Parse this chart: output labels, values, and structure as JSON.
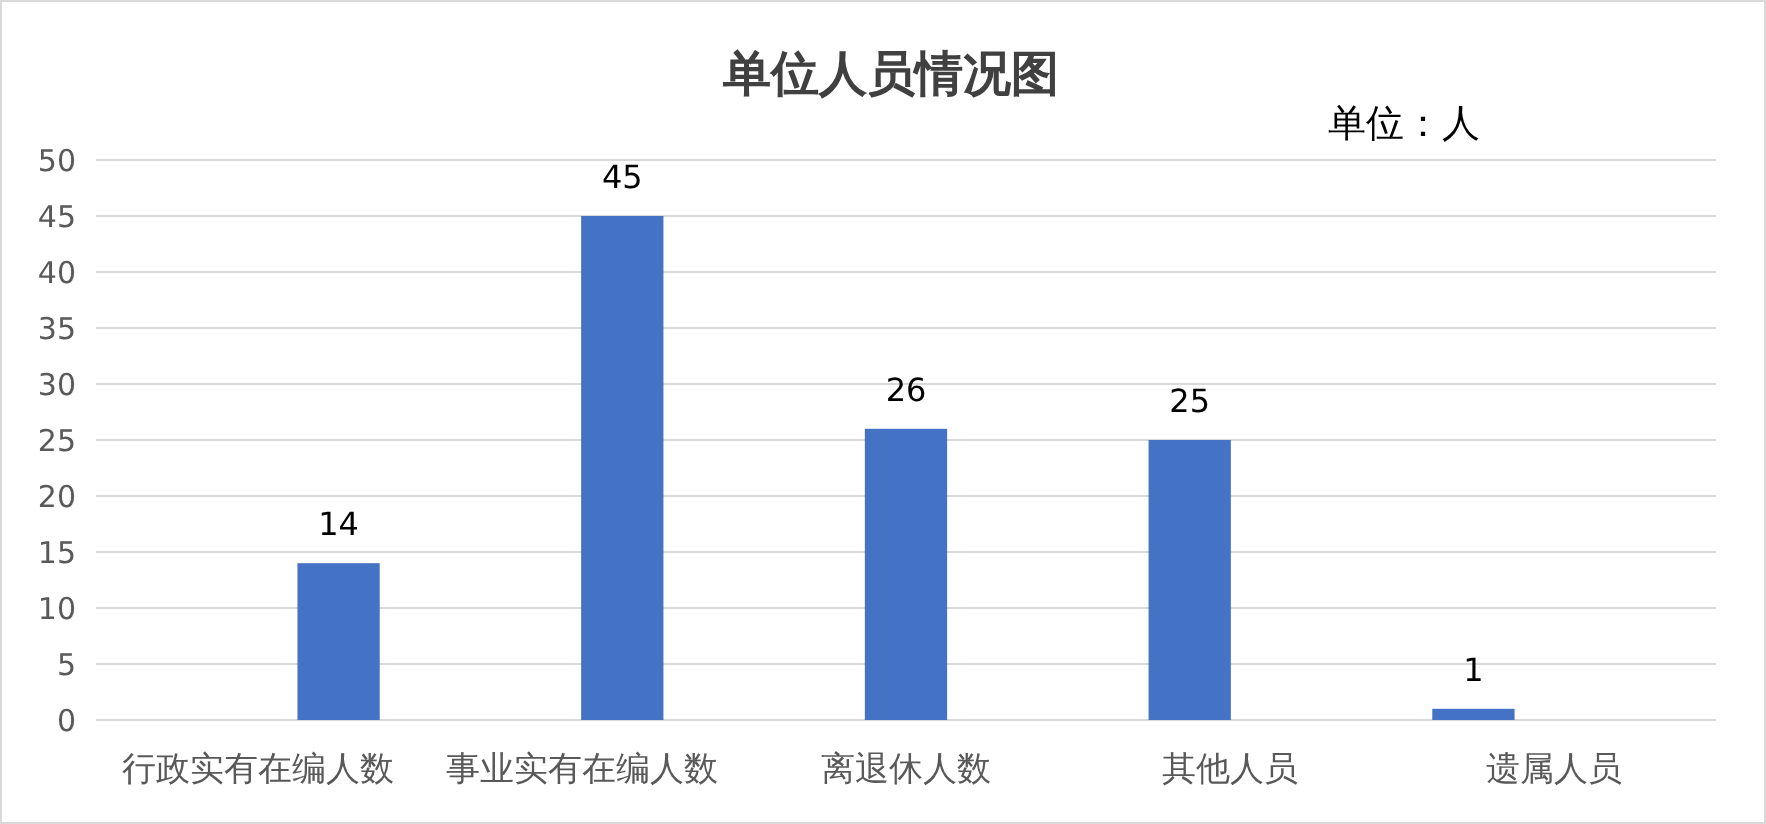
{
  "chart_data": {
    "type": "bar",
    "title": "单位人员情况图",
    "annotations": [
      "单位：人"
    ],
    "categories": [
      "行政实有在编人数",
      "事业实有在编人数",
      "离退休人数",
      "其他人员",
      "遗属人员"
    ],
    "values": [
      14,
      45,
      26,
      25,
      1
    ],
    "color": "#4472c4",
    "ylim": [
      0,
      50
    ],
    "yticks": [
      0,
      5,
      10,
      15,
      20,
      25,
      30,
      35,
      40,
      45,
      50
    ],
    "grid": "y",
    "data_labels": true
  }
}
